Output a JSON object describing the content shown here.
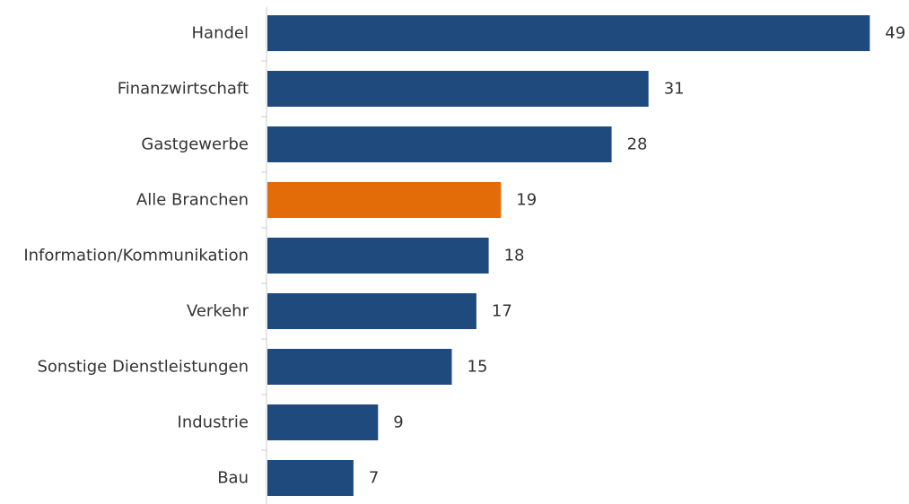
{
  "chart_data": {
    "type": "bar",
    "orientation": "horizontal",
    "categories": [
      "Handel",
      "Finanzwirtschaft",
      "Gastgewerbe",
      "Alle Branchen",
      "Information/Kommunikation",
      "Verkehr",
      "Sonstige Dienstleistungen",
      "Industrie",
      "Bau"
    ],
    "values": [
      49,
      31,
      28,
      19,
      18,
      17,
      15,
      9,
      7
    ],
    "highlight": "Alle Branchen",
    "colors": {
      "bar": "#1F4A7E",
      "highlight": "#E36C09",
      "axis": "#CCCCCC",
      "text": "#333333"
    },
    "title": "",
    "xlabel": "",
    "ylabel": "",
    "grid": false,
    "legend": "none"
  }
}
